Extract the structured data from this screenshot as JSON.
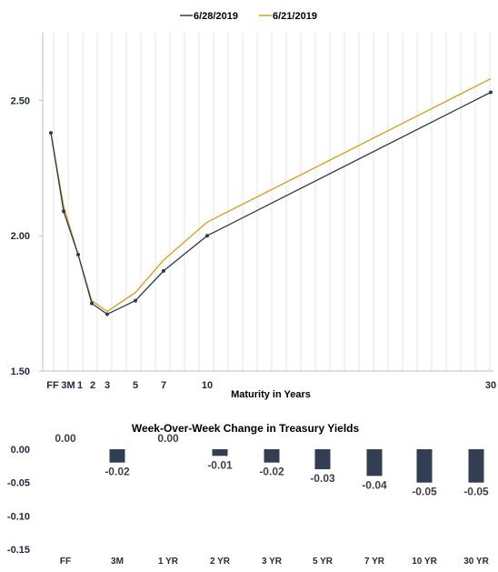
{
  "colors": {
    "series_a": "#2e3a4f",
    "series_b": "#d4a017",
    "bar": "#323e52",
    "grid": "#e4e4e4",
    "text": "#1f2a3a"
  },
  "chart_data": [
    {
      "type": "line",
      "title": "",
      "xlabel": "Maturity in Years",
      "ylabel": "",
      "x": [
        0.0,
        0.25,
        1,
        2,
        3,
        5,
        7,
        10,
        30
      ],
      "x_tick_labels": [
        "FF",
        "3M",
        "1",
        "2",
        "3",
        "5",
        "7",
        "10",
        "30"
      ],
      "ylim": [
        1.5,
        2.75
      ],
      "y_ticks": [
        1.5,
        2.0,
        2.5
      ],
      "y_tick_labels": [
        "1.50",
        "2.00",
        "2.50"
      ],
      "grid": "vertical",
      "legend": "top-center",
      "series": [
        {
          "name": "6/28/2019",
          "color": "#2e3a4f",
          "markers": true,
          "values": [
            2.38,
            2.09,
            1.93,
            1.75,
            1.71,
            1.76,
            1.87,
            2.0,
            2.53
          ]
        },
        {
          "name": "6/21/2019",
          "color": "#d4a017",
          "markers": false,
          "values": [
            2.38,
            2.11,
            1.93,
            1.76,
            1.72,
            1.79,
            1.91,
            2.05,
            2.58
          ]
        }
      ]
    },
    {
      "type": "bar",
      "title": "Week-Over-Week Change in Treasury Yields",
      "categories": [
        "FF",
        "3M",
        "1 YR",
        "2 YR",
        "3 YR",
        "5 YR",
        "7 YR",
        "10 YR",
        "30 YR"
      ],
      "values": [
        0.0,
        -0.02,
        0.0,
        -0.01,
        -0.02,
        -0.03,
        -0.04,
        -0.05,
        -0.05
      ],
      "data_labels": [
        "0.00",
        "-0.02",
        "0.00",
        "-0.01",
        "-0.02",
        "-0.03",
        "-0.04",
        "-0.05",
        "-0.05"
      ],
      "ylim": [
        -0.15,
        0.0
      ],
      "y_ticks": [
        0.0,
        -0.05,
        -0.1,
        -0.15
      ],
      "y_tick_labels": [
        "0.00",
        "-0.05",
        "-0.10",
        "-0.15"
      ],
      "grid": "none"
    }
  ]
}
